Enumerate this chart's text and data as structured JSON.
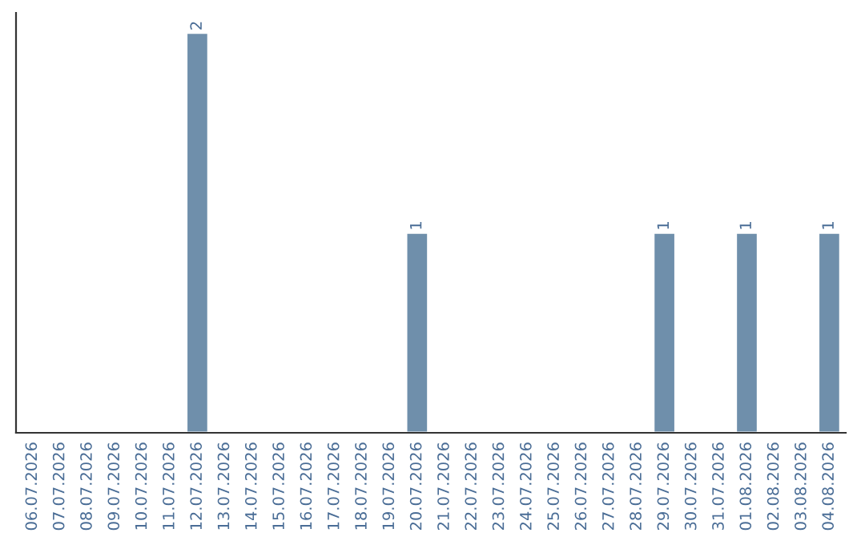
{
  "chart_data": {
    "type": "bar",
    "categories": [
      "06.07.2026",
      "07.07.2026",
      "08.07.2026",
      "09.07.2026",
      "10.07.2026",
      "11.07.2026",
      "12.07.2026",
      "13.07.2026",
      "14.07.2026",
      "15.07.2026",
      "16.07.2026",
      "17.07.2026",
      "18.07.2026",
      "19.07.2026",
      "20.07.2026",
      "21.07.2026",
      "22.07.2026",
      "23.07.2026",
      "24.07.2026",
      "25.07.2026",
      "26.07.2026",
      "27.07.2026",
      "28.07.2026",
      "29.07.2026",
      "30.07.2026",
      "31.07.2026",
      "01.08.2026",
      "02.08.2026",
      "03.08.2026",
      "04.08.2026"
    ],
    "values": [
      null,
      null,
      null,
      null,
      null,
      null,
      2,
      null,
      null,
      null,
      null,
      null,
      null,
      null,
      1,
      null,
      null,
      null,
      null,
      null,
      null,
      null,
      null,
      1,
      null,
      null,
      1,
      null,
      null,
      1
    ],
    "color": "#6f8fab",
    "ylim": [
      0,
      2.1
    ],
    "tick_labels": "x",
    "data_labels": true,
    "grid": false,
    "legend": false
  }
}
